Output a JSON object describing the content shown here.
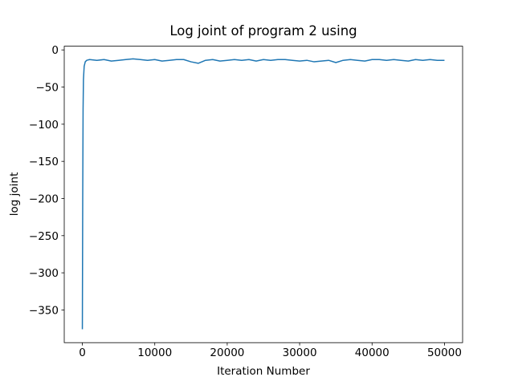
{
  "chart_data": {
    "type": "line",
    "title": "Log joint of program 2 using",
    "x_label": "Iteration Number",
    "y_label": "log joint",
    "xlim": [
      -2500,
      52500
    ],
    "ylim": [
      -394,
      5
    ],
    "xticks": [
      0,
      10000,
      20000,
      30000,
      40000,
      50000
    ],
    "yticks": [
      {
        "value": -350,
        "label": "−350"
      },
      {
        "value": -300,
        "label": "−300"
      },
      {
        "value": -250,
        "label": "−250"
      },
      {
        "value": -200,
        "label": "−200"
      },
      {
        "value": -150,
        "label": "−150"
      },
      {
        "value": -100,
        "label": "−100"
      },
      {
        "value": -50,
        "label": "−50"
      },
      0
    ],
    "x": [
      0,
      50,
      100,
      150,
      250,
      400,
      600,
      1000,
      2000,
      3000,
      4000,
      5000,
      6000,
      7000,
      8000,
      9000,
      10000,
      11000,
      12000,
      13000,
      14000,
      15000,
      16000,
      17000,
      18000,
      19000,
      20000,
      21000,
      22000,
      23000,
      24000,
      25000,
      26000,
      27000,
      28000,
      29000,
      30000,
      31000,
      32000,
      33000,
      34000,
      35000,
      36000,
      37000,
      38000,
      39000,
      40000,
      41000,
      42000,
      43000,
      44000,
      45000,
      46000,
      47000,
      48000,
      49000,
      50000
    ],
    "series": [
      {
        "color": "#1f77b4",
        "values": [
          -376,
          -200,
          -80,
          -40,
          -22,
          -16,
          -14,
          -13,
          -14,
          -13,
          -15,
          -14,
          -13,
          -12,
          -13,
          -14,
          -13,
          -15,
          -14,
          -13,
          -13,
          -16,
          -18,
          -14,
          -13,
          -15,
          -14,
          -13,
          -14,
          -13,
          -15,
          -13,
          -14,
          -13,
          -13,
          -14,
          -15,
          -14,
          -16,
          -15,
          -14,
          -17,
          -14,
          -13,
          -14,
          -15,
          -13,
          -13,
          -14,
          -13,
          -14,
          -15,
          -13,
          -14,
          -13,
          -14,
          -14
        ]
      }
    ]
  }
}
